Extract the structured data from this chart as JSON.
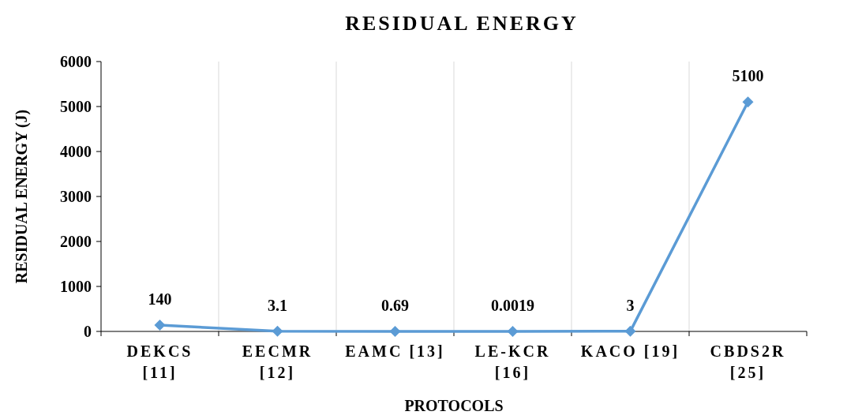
{
  "chart_data": {
    "type": "line",
    "title": "RESIDUAL ENERGY",
    "xlabel": "PROTOCOLS",
    "ylabel": "RESIDUAL ENERGY (J)",
    "categories": [
      "DEKCS [11]",
      "EECMR [12]",
      "EAMC [13]",
      "LE-KCR [16]",
      "KACO [19]",
      "CBDS2R [25]"
    ],
    "series": [
      {
        "color": "#5b9bd5",
        "values": [
          140,
          3.1,
          0.69,
          0.0019,
          3,
          5100
        ]
      }
    ],
    "ylim": [
      0,
      6000
    ],
    "yticks": [
      0,
      1000,
      2000,
      3000,
      4000,
      5000,
      6000
    ],
    "grid": "x",
    "marker": "diamond",
    "line_style": "solid",
    "data_labels": true
  }
}
